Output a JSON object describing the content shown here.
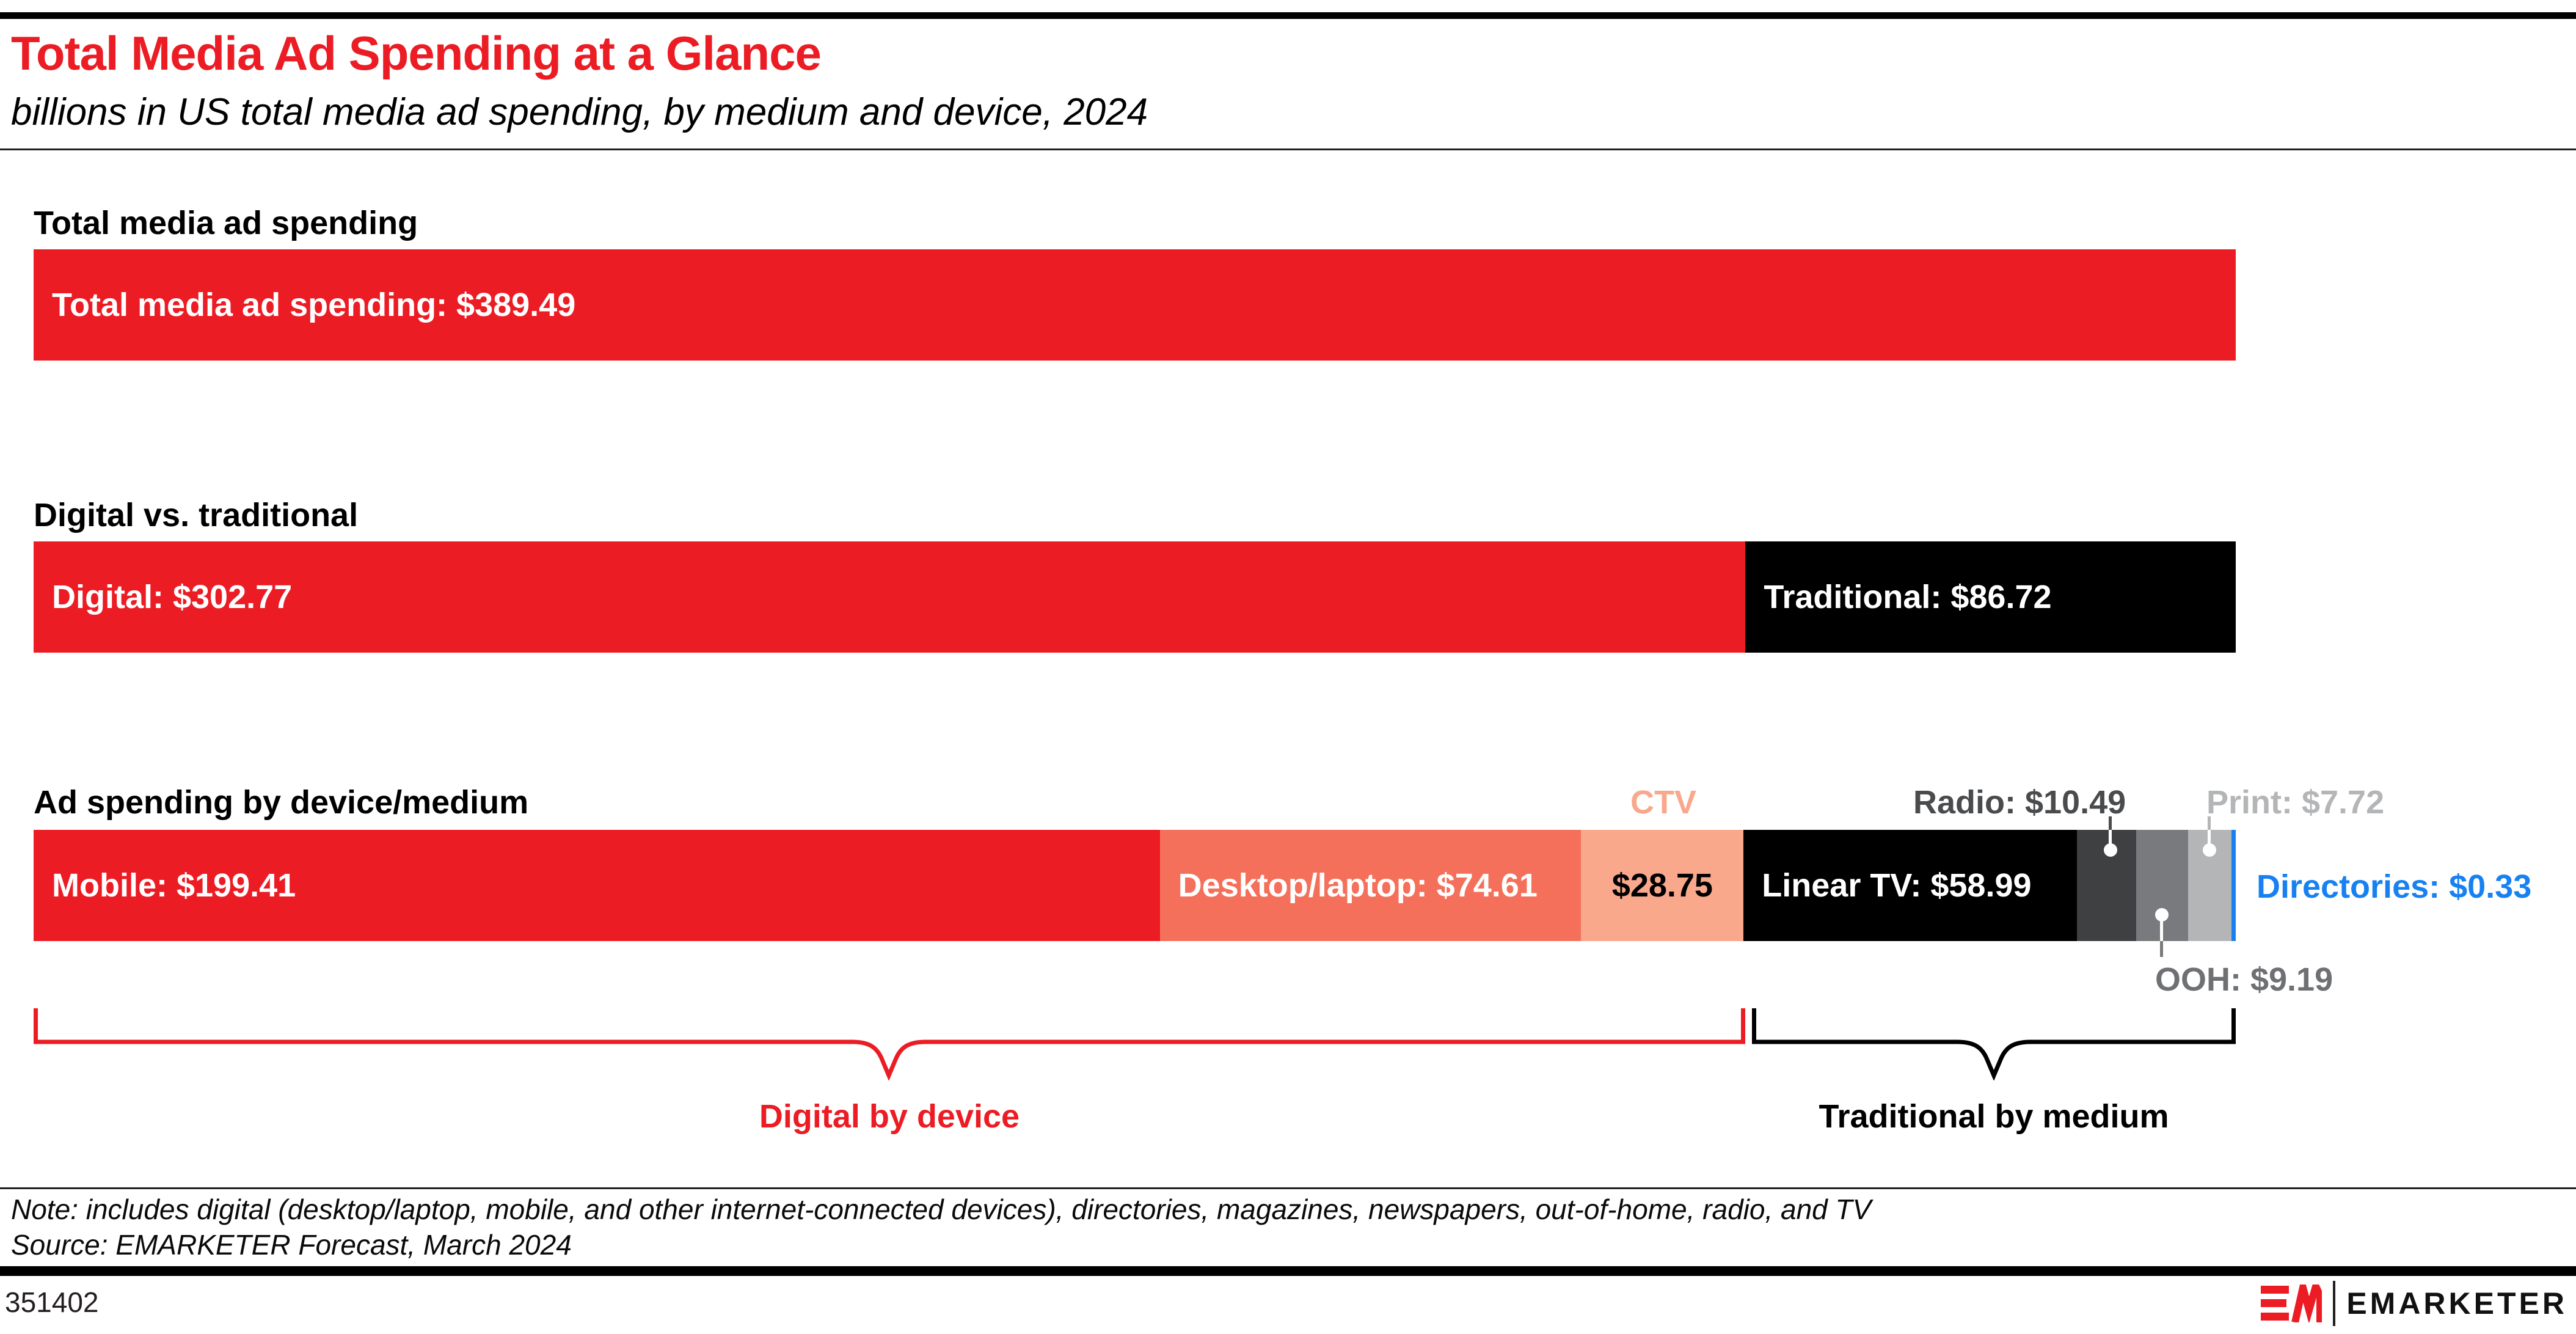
{
  "header": {
    "title": "Total Media Ad Spending at a Glance",
    "subtitle": "billions in US total media ad spending, by medium and device, 2024"
  },
  "chart_data": {
    "type": "bar",
    "title": "Total Media Ad Spending at a Glance",
    "subtitle": "billions in US total media ad spending, by medium and device, 2024",
    "unit": "USD billions",
    "year": 2024,
    "total": 389.49,
    "orientation": "horizontal-stacked",
    "rows": [
      {
        "heading": "Total media ad spending",
        "segments": [
          {
            "name": "Total media ad spending",
            "value": 389.49,
            "label": "Total media ad spending: $389.49",
            "color": "#EC1C24",
            "text_color": "#FFFFFF"
          }
        ]
      },
      {
        "heading": "Digital vs. traditional",
        "segments": [
          {
            "name": "Digital",
            "value": 302.77,
            "label": "Digital: $302.77",
            "color": "#EC1C24",
            "text_color": "#FFFFFF"
          },
          {
            "name": "Traditional",
            "value": 86.72,
            "label": "Traditional: $86.72",
            "color": "#000000",
            "text_color": "#FFFFFF"
          }
        ]
      },
      {
        "heading": "Ad spending by device/medium",
        "segments": [
          {
            "name": "Mobile",
            "value": 199.41,
            "label": "Mobile: $199.41",
            "color": "#EC1C24",
            "text_color": "#FFFFFF"
          },
          {
            "name": "Desktop/laptop",
            "value": 74.61,
            "label": "Desktop/laptop: $74.61",
            "color": "#F4705B",
            "text_color": "#FFFFFF"
          },
          {
            "name": "CTV",
            "value": 28.75,
            "label": "$28.75",
            "callout_label": "CTV",
            "color": "#F9A88C",
            "text_color": "#000000"
          },
          {
            "name": "Linear TV",
            "value": 58.99,
            "label": "Linear TV: $58.99",
            "color": "#000000",
            "text_color": "#FFFFFF"
          },
          {
            "name": "Radio",
            "value": 10.49,
            "callout_label": "Radio: $10.49",
            "color": "#3F4042"
          },
          {
            "name": "OOH",
            "value": 9.19,
            "callout_label": "OOH: $9.19",
            "color": "#797A7D"
          },
          {
            "name": "Print",
            "value": 7.72,
            "callout_label": "Print: $7.72",
            "color": "#B4B5B7"
          },
          {
            "name": "Directories",
            "value": 0.33,
            "callout_label": "Directories: $0.33",
            "color": "#1781F2"
          }
        ]
      }
    ],
    "braces": [
      {
        "label": "Digital by device",
        "color": "#EC1C24"
      },
      {
        "label": "Traditional by medium",
        "color": "#000000"
      }
    ]
  },
  "note": "Note: includes digital (desktop/laptop, mobile, and other internet-connected devices), directories, magazines, newspapers, out-of-home, radio, and TV",
  "source": "Source: EMARKETER Forecast, March 2024",
  "footer": {
    "chart_id": "351402",
    "brand": "EMARKETER"
  }
}
